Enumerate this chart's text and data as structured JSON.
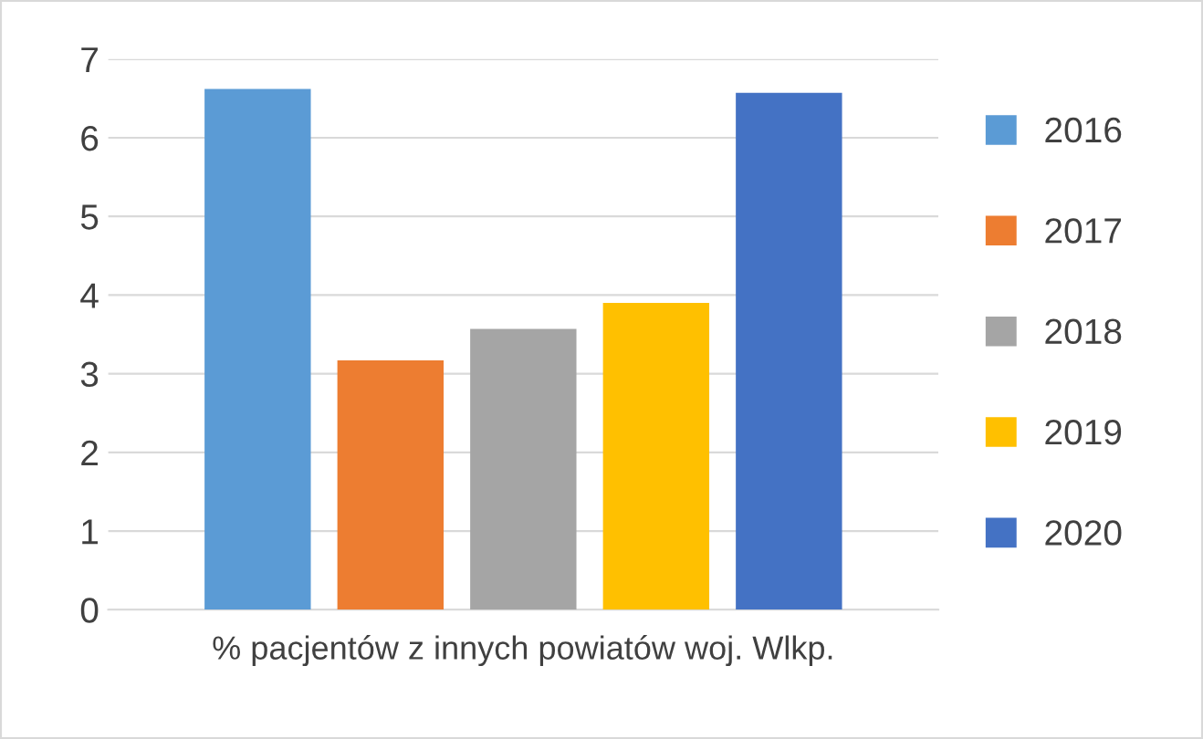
{
  "chart_data": {
    "type": "bar",
    "categories": [
      "% pacjentów z innych powiatów woj. Wlkp."
    ],
    "series": [
      {
        "name": "2016",
        "color": "#5b9bd5",
        "values": [
          6.62
        ]
      },
      {
        "name": "2017",
        "color": "#ed7d31",
        "values": [
          3.17
        ]
      },
      {
        "name": "2018",
        "color": "#a5a5a5",
        "values": [
          3.57
        ]
      },
      {
        "name": "2019",
        "color": "#ffc000",
        "values": [
          3.9
        ]
      },
      {
        "name": "2020",
        "color": "#4472c4",
        "values": [
          6.57
        ]
      }
    ],
    "ylim": [
      0,
      7
    ],
    "yticks": [
      0,
      1,
      2,
      3,
      4,
      5,
      6,
      7
    ],
    "grid": "y",
    "legend": "right"
  }
}
